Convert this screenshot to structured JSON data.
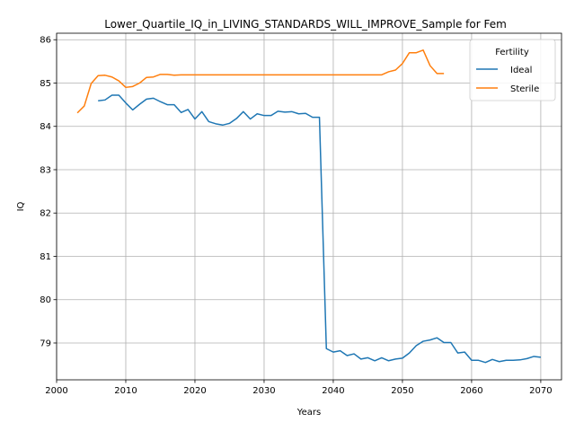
{
  "chart_data": {
    "type": "line",
    "title": "Lower_Quartile_IQ_in_LIVING_STANDARDS_WILL_IMPROVE_Sample for Fem",
    "xlabel": "Years",
    "ylabel": "IQ",
    "xlim": [
      2000,
      2073
    ],
    "ylim": [
      78.15,
      86.15
    ],
    "xticks": [
      2000,
      2010,
      2020,
      2030,
      2040,
      2050,
      2060,
      2070
    ],
    "yticks": [
      79,
      80,
      81,
      82,
      83,
      84,
      85,
      86
    ],
    "grid": true,
    "legend": {
      "title": "Fertility",
      "placement": "top-right"
    },
    "series": [
      {
        "name": "Ideal",
        "color": "#1f77b4",
        "x": [
          2006,
          2007,
          2008,
          2009,
          2010,
          2011,
          2012,
          2013,
          2014,
          2015,
          2016,
          2017,
          2018,
          2019,
          2020,
          2021,
          2022,
          2023,
          2024,
          2025,
          2026,
          2027,
          2028,
          2029,
          2030,
          2031,
          2032,
          2033,
          2034,
          2035,
          2036,
          2037,
          2038,
          2039,
          2040,
          2041,
          2042,
          2043,
          2044,
          2045,
          2046,
          2047,
          2048,
          2049,
          2050,
          2051,
          2052,
          2053,
          2054,
          2055,
          2056,
          2057,
          2058,
          2059,
          2060,
          2061,
          2062,
          2063,
          2064,
          2065,
          2066,
          2067,
          2068,
          2069,
          2070
        ],
        "y": [
          84.59,
          84.61,
          84.72,
          84.72,
          84.54,
          84.38,
          84.51,
          84.63,
          84.65,
          84.57,
          84.5,
          84.5,
          84.32,
          84.39,
          84.17,
          84.34,
          84.11,
          84.06,
          84.03,
          84.07,
          84.18,
          84.34,
          84.17,
          84.29,
          84.25,
          84.25,
          84.35,
          84.33,
          84.34,
          84.29,
          84.3,
          84.21,
          84.21,
          78.87,
          78.79,
          78.82,
          78.71,
          78.75,
          78.63,
          78.66,
          78.59,
          78.66,
          78.59,
          78.63,
          78.65,
          78.77,
          78.94,
          79.04,
          79.07,
          79.12,
          79.01,
          79.01,
          78.77,
          78.79,
          78.6,
          78.6,
          78.55,
          78.62,
          78.57,
          78.6,
          78.6,
          78.61,
          78.64,
          78.69,
          78.67
        ]
      },
      {
        "name": "Sterile",
        "color": "#ff7f0e",
        "x": [
          2003,
          2004,
          2005,
          2006,
          2007,
          2008,
          2009,
          2010,
          2011,
          2012,
          2013,
          2014,
          2015,
          2016,
          2017,
          2018,
          2019,
          2020,
          2021,
          2022,
          2023,
          2024,
          2025,
          2026,
          2027,
          2028,
          2029,
          2030,
          2031,
          2032,
          2033,
          2034,
          2035,
          2036,
          2037,
          2038,
          2039,
          2040,
          2041,
          2042,
          2043,
          2044,
          2045,
          2046,
          2047,
          2048,
          2049,
          2050,
          2051,
          2052,
          2053,
          2054,
          2055,
          2056
        ],
        "y": [
          84.31,
          84.47,
          84.99,
          85.17,
          85.18,
          85.14,
          85.05,
          84.9,
          84.92,
          85.0,
          85.13,
          85.14,
          85.2,
          85.2,
          85.18,
          85.19,
          85.19,
          85.19,
          85.19,
          85.19,
          85.19,
          85.19,
          85.19,
          85.19,
          85.19,
          85.19,
          85.19,
          85.19,
          85.19,
          85.19,
          85.19,
          85.19,
          85.19,
          85.19,
          85.19,
          85.19,
          85.19,
          85.19,
          85.19,
          85.19,
          85.19,
          85.19,
          85.19,
          85.19,
          85.19,
          85.26,
          85.3,
          85.45,
          85.7,
          85.7,
          85.76,
          85.4,
          85.22,
          85.22
        ]
      }
    ]
  }
}
